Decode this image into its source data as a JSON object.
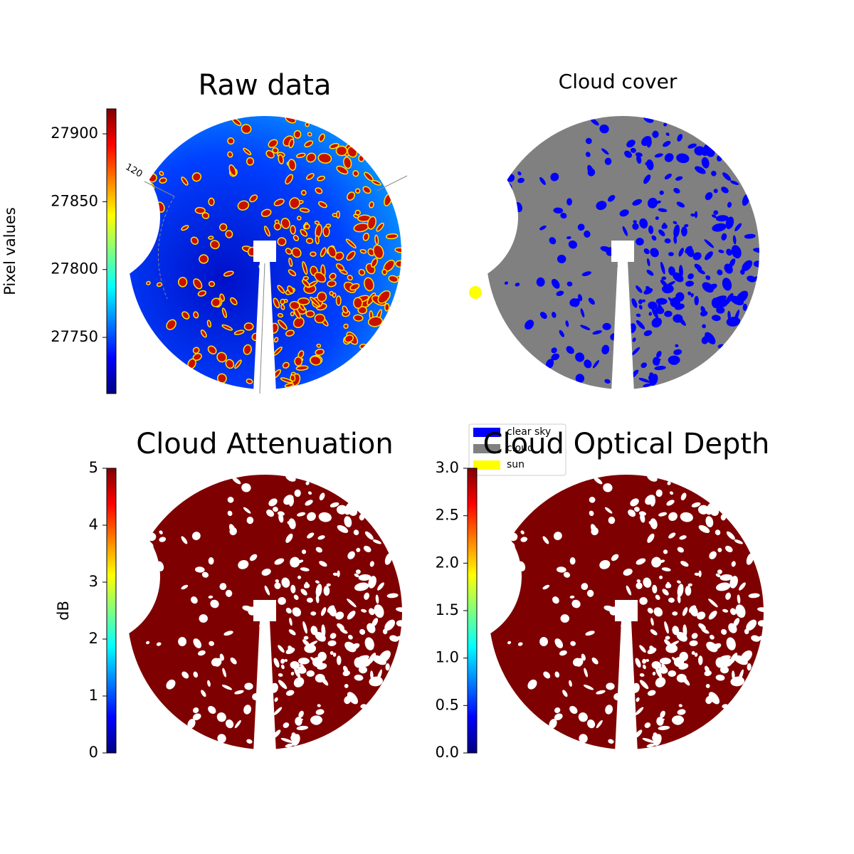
{
  "chart_data": [
    {
      "type": "image",
      "title": "Raw data",
      "ylabel": "Pixel values",
      "colormap": "jet",
      "ylim": [
        27708.6,
        27918.4
      ],
      "yticks": [
        27750,
        27800,
        27850,
        27900
      ],
      "annotation": "120"
    },
    {
      "type": "image",
      "title": "Cloud cover",
      "series": [
        {
          "name": "clear sky",
          "color": "#0000ff"
        },
        {
          "name": "cloud",
          "color": "#808080"
        },
        {
          "name": "sun",
          "color": "#ffff00"
        }
      ]
    },
    {
      "type": "image",
      "title": "Cloud Attenuation",
      "ylabel": "dB",
      "colormap": "jet",
      "ylim": [
        0,
        5
      ],
      "yticks": [
        0,
        1,
        2,
        3,
        4,
        5
      ]
    },
    {
      "type": "image",
      "title": "Cloud Optical Depth",
      "colormap": "jet",
      "ylim": [
        0,
        3
      ],
      "yticks": [
        {
          "value": 0,
          "label": "0.0"
        },
        0.5,
        {
          "value": 1,
          "label": "1.0"
        },
        1.5,
        {
          "value": 2,
          "label": "2.0"
        },
        2.5,
        {
          "value": 3,
          "label": "3.0"
        }
      ]
    }
  ]
}
